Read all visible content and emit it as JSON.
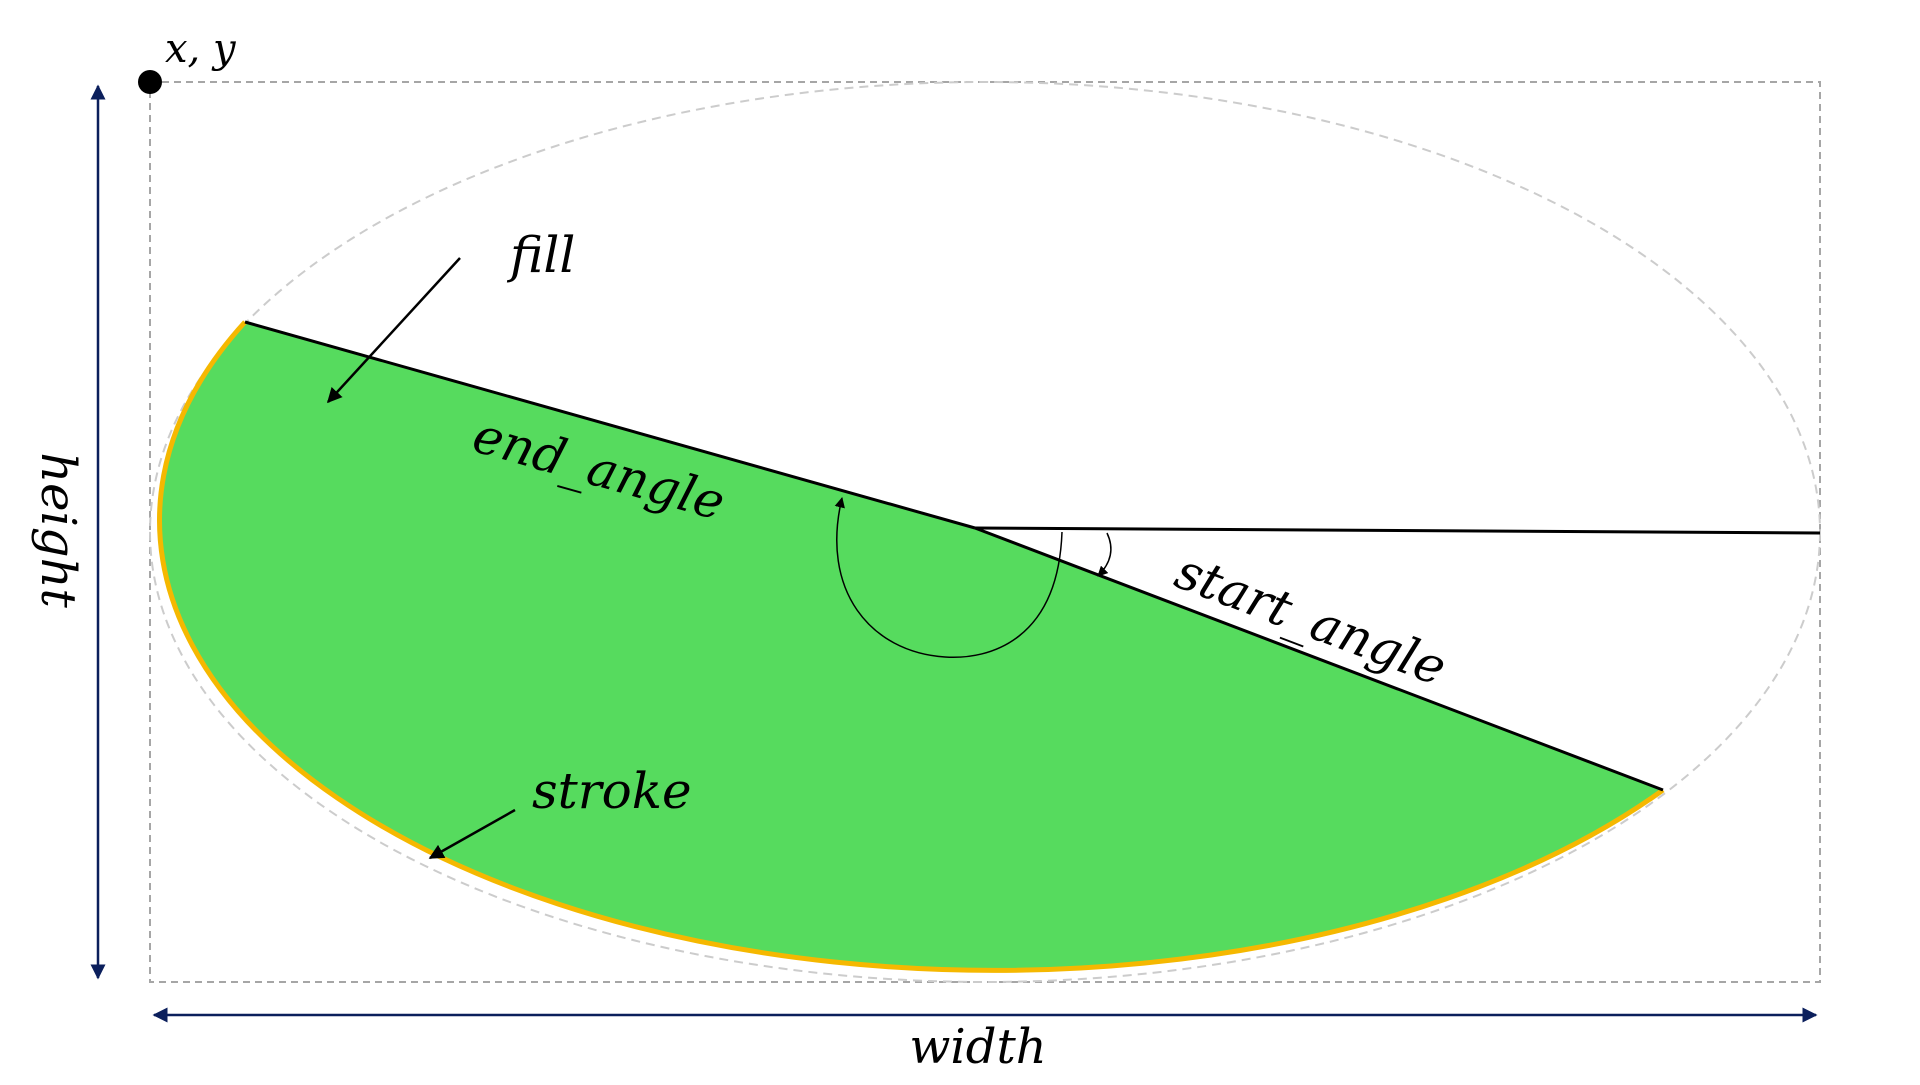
{
  "labels": {
    "origin": "x, y",
    "fill": "fill",
    "end_angle": "end_angle",
    "start_angle": "start_angle",
    "stroke": "stroke",
    "width": "width",
    "height": "height"
  },
  "colors": {
    "fill": "#56db5e",
    "stroke": "#f5b800",
    "dimension_arrow": "#0b1f5c",
    "bounding_box": "#a6a6a6",
    "ghost_ellipse": "#cccccc",
    "lines": "#000000"
  },
  "icons": {
    "origin_marker": "filled-circle",
    "fill_pointer": "arrow",
    "stroke_pointer": "arrow",
    "end_angle_marker": "arc-arrow",
    "start_angle_marker": "arc-arrow"
  }
}
